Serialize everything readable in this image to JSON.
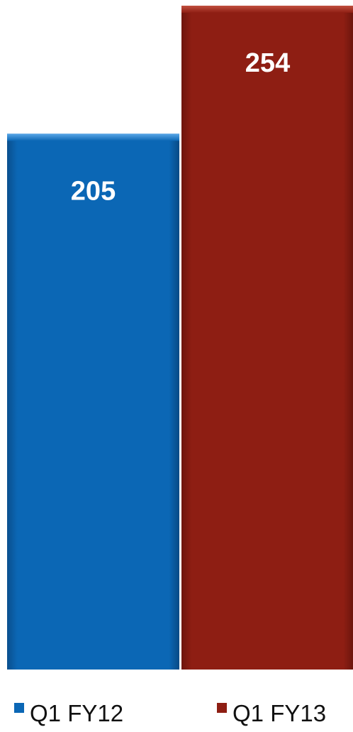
{
  "chart_data": {
    "type": "bar",
    "categories": [
      "Q1 FY12",
      "Q1 FY13"
    ],
    "values": [
      205,
      254
    ],
    "ylim": [
      0,
      254
    ],
    "colors": [
      "#0b67b5",
      "#8e1e13"
    ],
    "legend": {
      "placement": "bottom",
      "entries": [
        "Q1 FY12",
        "Q1 FY13"
      ]
    },
    "grid": false,
    "title": "",
    "xlabel": "",
    "ylabel": ""
  }
}
